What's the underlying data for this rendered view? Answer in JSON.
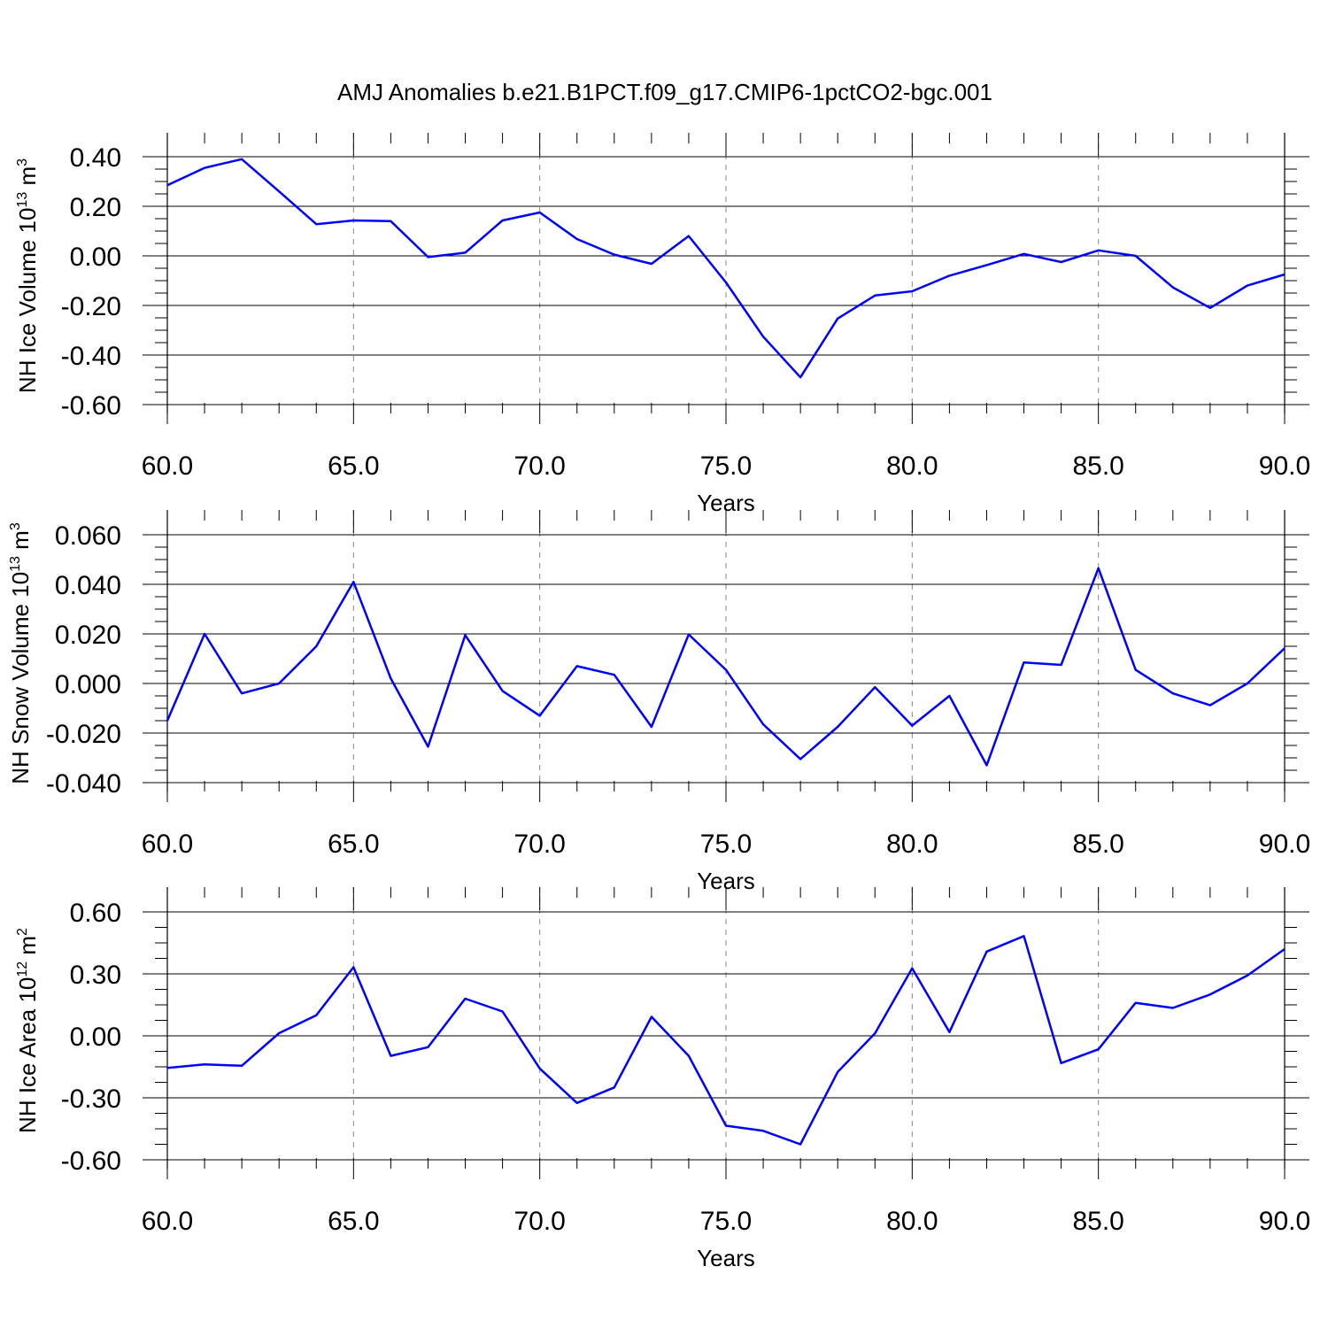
{
  "title": "AMJ Anomalies b.e21.B1PCT.f09_g17.CMIP6-1pctCO2-bgc.001",
  "colors": {
    "line": "#0000ff",
    "axis": "#000000",
    "grid": "#888888"
  },
  "chart_data": [
    {
      "type": "line",
      "ylabel": {
        "main": "NH Ice Volume 10",
        "exp": "13",
        "unit": " m",
        "unit_exp": "3"
      },
      "xlabel": "Years",
      "xlim": [
        60,
        90
      ],
      "ylim": [
        -0.6,
        0.4
      ],
      "xticks": [
        "60.0",
        "65.0",
        "70.0",
        "75.0",
        "80.0",
        "85.0",
        "90.0"
      ],
      "yticks": [
        "-0.60",
        "-0.40",
        "-0.20",
        "0.00",
        "0.20",
        "0.40"
      ],
      "x": [
        60,
        61,
        62,
        63,
        64,
        65,
        66,
        67,
        68,
        69,
        70,
        71,
        72,
        73,
        74,
        75,
        76,
        77,
        78,
        79,
        80,
        81,
        82,
        83,
        84,
        85,
        86,
        87,
        88,
        89,
        90
      ],
      "series": [
        {
          "values": [
            0.285,
            0.355,
            0.39,
            0.26,
            0.128,
            0.143,
            0.14,
            -0.005,
            0.013,
            0.143,
            0.175,
            0.068,
            0.005,
            -0.032,
            0.08,
            -0.107,
            -0.326,
            -0.49,
            -0.253,
            -0.16,
            -0.143,
            -0.08,
            -0.037,
            0.008,
            -0.025,
            0.022,
            0.0,
            -0.127,
            -0.21,
            -0.12,
            -0.075
          ]
        }
      ],
      "grid": "dashed vertical lines at major x ticks"
    },
    {
      "type": "line",
      "ylabel": {
        "main": "NH Snow Volume 10",
        "exp": "13",
        "unit": " m",
        "unit_exp": "3"
      },
      "xlabel": "Years",
      "xlim": [
        60,
        90
      ],
      "ylim": [
        -0.04,
        0.06
      ],
      "xticks": [
        "60.0",
        "65.0",
        "70.0",
        "75.0",
        "80.0",
        "85.0",
        "90.0"
      ],
      "yticks": [
        "-0.040",
        "-0.020",
        "0.000",
        "0.020",
        "0.040",
        "0.060"
      ],
      "x": [
        60,
        61,
        62,
        63,
        64,
        65,
        66,
        67,
        68,
        69,
        70,
        71,
        72,
        73,
        74,
        75,
        76,
        77,
        78,
        79,
        80,
        81,
        82,
        83,
        84,
        85,
        86,
        87,
        88,
        89,
        90
      ],
      "series": [
        {
          "values": [
            -0.015,
            0.02,
            -0.004,
            0.0,
            0.015,
            0.041,
            0.002,
            -0.0255,
            0.0195,
            -0.003,
            -0.013,
            0.007,
            0.0035,
            -0.0175,
            0.0198,
            0.0055,
            -0.0165,
            -0.0305,
            -0.0175,
            -0.0015,
            -0.017,
            -0.005,
            -0.033,
            0.0085,
            0.0075,
            0.0465,
            0.0055,
            -0.004,
            -0.0088,
            0.0,
            0.0142
          ]
        }
      ],
      "grid": "dashed vertical lines at major x ticks"
    },
    {
      "type": "line",
      "ylabel": {
        "main": "NH Ice Area 10",
        "exp": "12",
        "unit": " m",
        "unit_exp": "2"
      },
      "xlabel": "Years",
      "xlim": [
        60,
        90
      ],
      "ylim": [
        -0.6,
        0.6
      ],
      "xticks": [
        "60.0",
        "65.0",
        "70.0",
        "75.0",
        "80.0",
        "85.0",
        "90.0"
      ],
      "yticks": [
        "-0.60",
        "-0.30",
        "0.00",
        "0.30",
        "0.60"
      ],
      "x": [
        60,
        61,
        62,
        63,
        64,
        65,
        66,
        67,
        68,
        69,
        70,
        71,
        72,
        73,
        74,
        75,
        76,
        77,
        78,
        79,
        80,
        81,
        82,
        83,
        84,
        85,
        86,
        87,
        88,
        89,
        90
      ],
      "series": [
        {
          "values": [
            -0.155,
            -0.138,
            -0.145,
            0.013,
            0.1,
            0.332,
            -0.097,
            -0.055,
            0.18,
            0.118,
            -0.158,
            -0.325,
            -0.25,
            0.092,
            -0.097,
            -0.435,
            -0.46,
            -0.525,
            -0.175,
            0.012,
            0.327,
            0.018,
            0.408,
            0.483,
            -0.132,
            -0.065,
            0.16,
            0.135,
            0.2,
            0.292,
            0.42
          ]
        }
      ],
      "grid": "dashed vertical lines at major x ticks"
    }
  ]
}
